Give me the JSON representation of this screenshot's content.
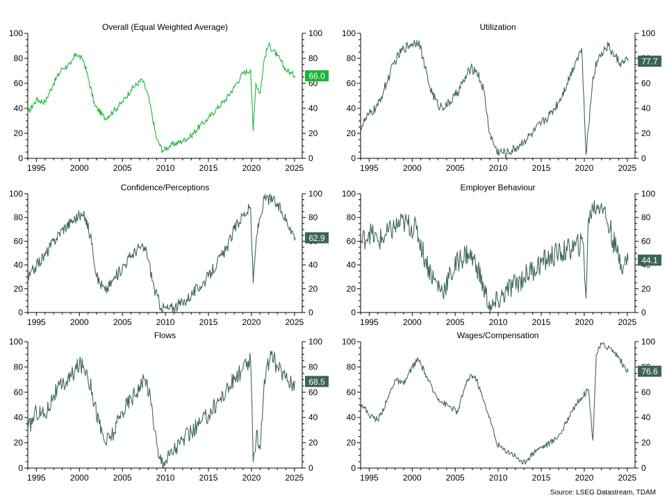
{
  "source": "Source: LSEG Datastream, TDAM",
  "colors": {
    "bright_green": "#1db33a",
    "dark_green": "#3b6652",
    "axis": "#000000"
  },
  "chart_data": [
    {
      "type": "line",
      "title": "Overall (Equal Weighted Average)",
      "color": "#1db33a",
      "last_value_label": "66.0",
      "xlim": [
        1994,
        2025.9
      ],
      "ylim": [
        0,
        100
      ],
      "x_ticks": [
        "1995",
        "2000",
        "2005",
        "2010",
        "2015",
        "2020",
        "2025"
      ],
      "y_ticks": [
        "0",
        "20",
        "40",
        "60",
        "80",
        "100"
      ],
      "volatility": 2.5,
      "points": [
        [
          1994,
          36
        ],
        [
          1995,
          47
        ],
        [
          1996,
          45
        ],
        [
          1997,
          60
        ],
        [
          1998,
          72
        ],
        [
          1999,
          75
        ],
        [
          1999.6,
          84
        ],
        [
          2000.5,
          78
        ],
        [
          2001,
          65
        ],
        [
          2001.8,
          42
        ],
        [
          2003,
          32
        ],
        [
          2004,
          38
        ],
        [
          2005,
          45
        ],
        [
          2006,
          55
        ],
        [
          2007.3,
          63
        ],
        [
          2008,
          50
        ],
        [
          2009,
          15
        ],
        [
          2009.7,
          6
        ],
        [
          2010.5,
          10
        ],
        [
          2012,
          14
        ],
        [
          2013,
          18
        ],
        [
          2014,
          26
        ],
        [
          2015,
          32
        ],
        [
          2016,
          40
        ],
        [
          2017,
          47
        ],
        [
          2018,
          57
        ],
        [
          2019,
          68
        ],
        [
          2019.9,
          71
        ],
        [
          2020.2,
          22
        ],
        [
          2020.5,
          60
        ],
        [
          2021,
          52
        ],
        [
          2021.5,
          80
        ],
        [
          2022,
          91
        ],
        [
          2023,
          82
        ],
        [
          2024,
          71
        ],
        [
          2024.6,
          68
        ],
        [
          2025.1,
          66
        ]
      ]
    },
    {
      "type": "line",
      "title": "Utilization",
      "color": "#3b6652",
      "last_value_label": "77.7",
      "xlim": [
        1994,
        2025.9
      ],
      "ylim": [
        0,
        100
      ],
      "x_ticks": [
        "1995",
        "2000",
        "2005",
        "2010",
        "2015",
        "2020",
        "2025"
      ],
      "y_ticks": [
        "0",
        "20",
        "40",
        "60",
        "80",
        "100"
      ],
      "volatility": 4,
      "points": [
        [
          1994,
          25
        ],
        [
          1995,
          35
        ],
        [
          1996,
          42
        ],
        [
          1997,
          60
        ],
        [
          1998,
          78
        ],
        [
          1999,
          88
        ],
        [
          2000,
          92
        ],
        [
          2000.8,
          94
        ],
        [
          2001.5,
          72
        ],
        [
          2002,
          58
        ],
        [
          2003,
          42
        ],
        [
          2004,
          42
        ],
        [
          2005,
          50
        ],
        [
          2006,
          62
        ],
        [
          2006.8,
          72
        ],
        [
          2007.5,
          70
        ],
        [
          2008.3,
          55
        ],
        [
          2009,
          20
        ],
        [
          2009.8,
          6
        ],
        [
          2011,
          4
        ],
        [
          2012,
          8
        ],
        [
          2013,
          14
        ],
        [
          2014,
          20
        ],
        [
          2015,
          28
        ],
        [
          2016,
          35
        ],
        [
          2017,
          45
        ],
        [
          2018,
          60
        ],
        [
          2019,
          78
        ],
        [
          2019.7,
          88
        ],
        [
          2020.2,
          3
        ],
        [
          2020.5,
          25
        ],
        [
          2021,
          65
        ],
        [
          2021.5,
          78
        ],
        [
          2022,
          85
        ],
        [
          2022.8,
          90
        ],
        [
          2023.5,
          82
        ],
        [
          2024.3,
          76
        ],
        [
          2025.1,
          77.7
        ]
      ]
    },
    {
      "type": "line",
      "title": "Confidence/Perceptions",
      "color": "#3b6652",
      "last_value_label": "62.9",
      "xlim": [
        1994,
        2025.9
      ],
      "ylim": [
        0,
        100
      ],
      "x_ticks": [
        "1995",
        "2000",
        "2005",
        "2010",
        "2015",
        "2020",
        "2025"
      ],
      "y_ticks": [
        "0",
        "20",
        "40",
        "60",
        "80",
        "100"
      ],
      "volatility": 5,
      "points": [
        [
          1994,
          28
        ],
        [
          1995,
          40
        ],
        [
          1996,
          48
        ],
        [
          1997,
          60
        ],
        [
          1998,
          70
        ],
        [
          1999,
          76
        ],
        [
          2000,
          82
        ],
        [
          2000.7,
          80
        ],
        [
          2001.5,
          58
        ],
        [
          2002,
          30
        ],
        [
          2003,
          18
        ],
        [
          2004,
          28
        ],
        [
          2005,
          38
        ],
        [
          2006,
          48
        ],
        [
          2007,
          55
        ],
        [
          2007.8,
          52
        ],
        [
          2008.7,
          20
        ],
        [
          2009.5,
          4
        ],
        [
          2010.5,
          3
        ],
        [
          2012,
          8
        ],
        [
          2013,
          15
        ],
        [
          2014,
          22
        ],
        [
          2015,
          30
        ],
        [
          2016,
          42
        ],
        [
          2017,
          52
        ],
        [
          2018,
          70
        ],
        [
          2019,
          82
        ],
        [
          2019.9,
          88
        ],
        [
          2020.2,
          25
        ],
        [
          2020.6,
          65
        ],
        [
          2021,
          80
        ],
        [
          2021.5,
          96
        ],
        [
          2022.5,
          95
        ],
        [
          2023.5,
          85
        ],
        [
          2024.5,
          72
        ],
        [
          2025.1,
          62.9
        ]
      ]
    },
    {
      "type": "line",
      "title": "Employer Behaviour",
      "color": "#3b6652",
      "last_value_label": "44.1",
      "xlim": [
        1994,
        2025.9
      ],
      "ylim": [
        0,
        100
      ],
      "x_ticks": [
        "1995",
        "2000",
        "2005",
        "2010",
        "2015",
        "2020",
        "2025"
      ],
      "y_ticks": [
        "0",
        "20",
        "40",
        "60",
        "80",
        "100"
      ],
      "volatility": 10,
      "points": [
        [
          1994,
          58
        ],
        [
          1995,
          68
        ],
        [
          1996,
          60
        ],
        [
          1997,
          65
        ],
        [
          1998,
          72
        ],
        [
          1999,
          76
        ],
        [
          2000.5,
          70
        ],
        [
          2001.5,
          45
        ],
        [
          2002.5,
          28
        ],
        [
          2003.5,
          18
        ],
        [
          2004.5,
          32
        ],
        [
          2005.5,
          45
        ],
        [
          2006.5,
          50
        ],
        [
          2007.5,
          40
        ],
        [
          2008.3,
          20
        ],
        [
          2009.2,
          2
        ],
        [
          2010,
          10
        ],
        [
          2011,
          18
        ],
        [
          2012,
          24
        ],
        [
          2013,
          30
        ],
        [
          2014,
          36
        ],
        [
          2015,
          42
        ],
        [
          2016,
          46
        ],
        [
          2017,
          50
        ],
        [
          2018,
          52
        ],
        [
          2019,
          56
        ],
        [
          2019.9,
          58
        ],
        [
          2020.2,
          12
        ],
        [
          2020.5,
          80
        ],
        [
          2021,
          88
        ],
        [
          2022,
          92
        ],
        [
          2023,
          70
        ],
        [
          2023.8,
          50
        ],
        [
          2024.6,
          40
        ],
        [
          2025.1,
          44.1
        ]
      ]
    },
    {
      "type": "line",
      "title": "Flows",
      "color": "#3b6652",
      "last_value_label": "68.5",
      "xlim": [
        1994,
        2025.9
      ],
      "ylim": [
        0,
        100
      ],
      "x_ticks": [
        "1995",
        "2000",
        "2005",
        "2010",
        "2015",
        "2020",
        "2025"
      ],
      "y_ticks": [
        "0",
        "20",
        "40",
        "60",
        "80",
        "100"
      ],
      "volatility": 7,
      "points": [
        [
          1994,
          30
        ],
        [
          1995,
          45
        ],
        [
          1996,
          42
        ],
        [
          1997,
          58
        ],
        [
          1998,
          65
        ],
        [
          1999,
          72
        ],
        [
          2000,
          82
        ],
        [
          2000.8,
          78
        ],
        [
          2001.5,
          60
        ],
        [
          2002.3,
          35
        ],
        [
          2003,
          20
        ],
        [
          2004,
          28
        ],
        [
          2005,
          45
        ],
        [
          2006,
          55
        ],
        [
          2007,
          65
        ],
        [
          2007.8,
          70
        ],
        [
          2008.5,
          45
        ],
        [
          2009.2,
          8
        ],
        [
          2010,
          6
        ],
        [
          2011,
          15
        ],
        [
          2012,
          22
        ],
        [
          2013,
          28
        ],
        [
          2014,
          35
        ],
        [
          2015,
          42
        ],
        [
          2016,
          52
        ],
        [
          2017,
          60
        ],
        [
          2018,
          70
        ],
        [
          2019,
          78
        ],
        [
          2019.9,
          85
        ],
        [
          2020.2,
          5
        ],
        [
          2020.6,
          30
        ],
        [
          2021,
          15
        ],
        [
          2021.5,
          70
        ],
        [
          2022.3,
          90
        ],
        [
          2023,
          80
        ],
        [
          2024,
          72
        ],
        [
          2024.8,
          66
        ],
        [
          2025.1,
          68.5
        ]
      ]
    },
    {
      "type": "line",
      "title": "Wages/Compensation",
      "color": "#3b6652",
      "last_value_label": "76.6",
      "xlim": [
        1994,
        2025.9
      ],
      "ylim": [
        0,
        100
      ],
      "x_ticks": [
        "1995",
        "2000",
        "2005",
        "2010",
        "2015",
        "2020",
        "2025"
      ],
      "y_ticks": [
        "0",
        "20",
        "40",
        "60",
        "80",
        "100"
      ],
      "volatility": 2.5,
      "points": [
        [
          1994,
          52
        ],
        [
          1995,
          42
        ],
        [
          1996,
          38
        ],
        [
          1997,
          52
        ],
        [
          1998,
          70
        ],
        [
          1999,
          66
        ],
        [
          2000,
          80
        ],
        [
          2000.7,
          86
        ],
        [
          2001.5,
          75
        ],
        [
          2002.5,
          60
        ],
        [
          2003.5,
          52
        ],
        [
          2004.5,
          48
        ],
        [
          2005.3,
          44
        ],
        [
          2006,
          62
        ],
        [
          2006.8,
          74
        ],
        [
          2007.5,
          70
        ],
        [
          2008.2,
          55
        ],
        [
          2009,
          40
        ],
        [
          2009.8,
          20
        ],
        [
          2010.5,
          15
        ],
        [
          2011.5,
          12
        ],
        [
          2012.3,
          8
        ],
        [
          2012.8,
          3
        ],
        [
          2013.5,
          8
        ],
        [
          2014.5,
          15
        ],
        [
          2015.5,
          18
        ],
        [
          2016.5,
          22
        ],
        [
          2017.5,
          30
        ],
        [
          2018.5,
          45
        ],
        [
          2019.5,
          55
        ],
        [
          2020.5,
          62
        ],
        [
          2021,
          22
        ],
        [
          2021.4,
          90
        ],
        [
          2022,
          98
        ],
        [
          2023,
          95
        ],
        [
          2024,
          88
        ],
        [
          2024.8,
          78
        ],
        [
          2025.1,
          76.6
        ]
      ]
    }
  ]
}
